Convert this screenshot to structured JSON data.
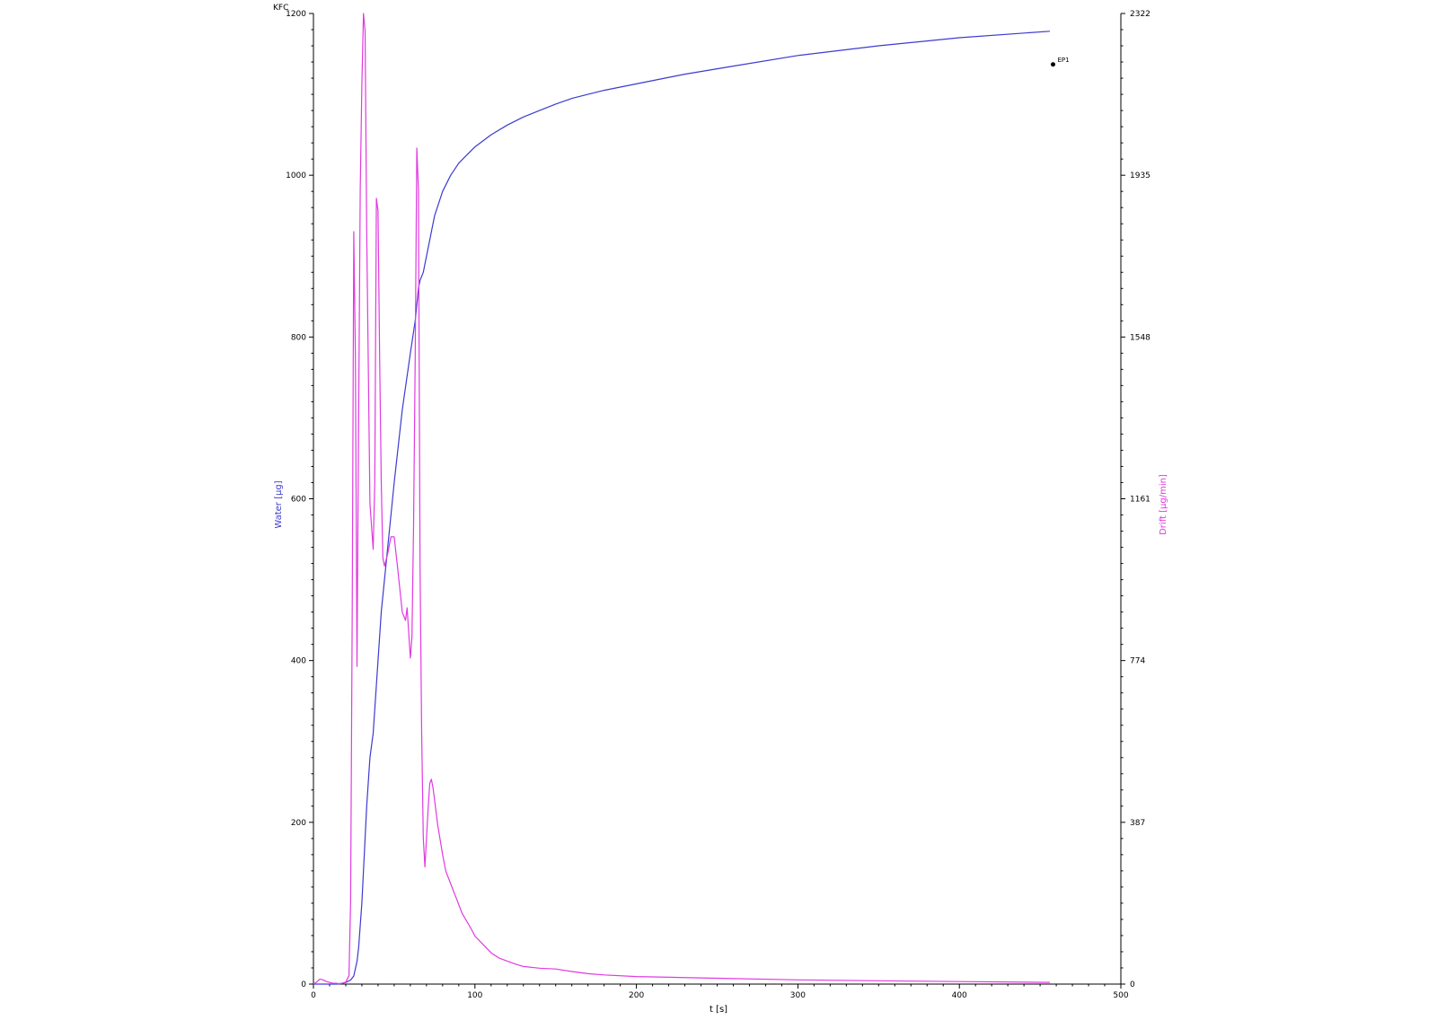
{
  "chart_data": {
    "type": "line",
    "title": "KFC",
    "xlabel": "t [s]",
    "y_left_label": "Water [µg]",
    "y_right_label": "Drift [µg/min]",
    "xlim": [
      0,
      500
    ],
    "y_left_lim": [
      0,
      1200
    ],
    "y_right_lim": [
      0,
      2322
    ],
    "x_ticks": [
      0,
      100,
      200,
      300,
      400,
      500
    ],
    "y_left_ticks": [
      0,
      200,
      400,
      600,
      800,
      1000,
      1200
    ],
    "y_right_ticks": [
      0,
      387,
      774,
      1161,
      1548,
      1935,
      2322
    ],
    "grid": false,
    "colors": {
      "water": "#3b3bd0",
      "drift": "#e03ae0",
      "axis": "#000000"
    },
    "annotations": [
      {
        "label": "EP1",
        "x": 458,
        "y": 1137
      }
    ],
    "series": [
      {
        "name": "Water [µg]",
        "axis": "left",
        "x": [
          0,
          5,
          10,
          15,
          20,
          23,
          25,
          27,
          28,
          30,
          32,
          33,
          35,
          37,
          40,
          42,
          43,
          45,
          50,
          55,
          60,
          63,
          65,
          66,
          68,
          70,
          72,
          75,
          80,
          85,
          90,
          95,
          100,
          110,
          120,
          130,
          140,
          150,
          160,
          180,
          200,
          230,
          260,
          300,
          350,
          400,
          456
        ],
        "y": [
          0,
          0,
          0,
          0,
          2,
          5,
          10,
          28,
          45,
          100,
          180,
          220,
          280,
          310,
          400,
          460,
          480,
          520,
          620,
          710,
          780,
          820,
          860,
          870,
          880,
          900,
          920,
          950,
          980,
          1000,
          1015,
          1025,
          1035,
          1050,
          1062,
          1072,
          1080,
          1088,
          1095,
          1105,
          1113,
          1125,
          1135,
          1148,
          1160,
          1170,
          1178
        ]
      },
      {
        "name": "Drift [µg/min]",
        "axis": "right",
        "x": [
          0,
          2,
          4,
          6,
          8,
          10,
          12,
          14,
          16,
          18,
          20,
          22,
          23,
          24,
          25,
          26,
          27,
          28,
          29,
          30,
          31,
          32,
          33,
          35,
          37,
          38,
          39,
          40,
          41,
          42,
          43,
          44,
          46,
          48,
          50,
          52,
          55,
          57,
          58,
          60,
          61,
          62,
          63,
          64,
          65,
          66,
          67,
          68,
          69,
          70,
          71,
          72,
          73,
          74,
          75,
          77,
          80,
          82,
          84,
          86,
          88,
          90,
          92,
          95,
          98,
          100,
          105,
          110,
          115,
          120,
          125,
          130,
          140,
          150,
          160,
          170,
          180,
          200,
          250,
          300,
          350,
          400,
          456
        ],
        "y": [
          0,
          5,
          12,
          10,
          6,
          4,
          2,
          2,
          1,
          2,
          5,
          20,
          200,
          900,
          1800,
          1500,
          760,
          1350,
          1900,
          2150,
          2322,
          2280,
          1800,
          1150,
          1040,
          1200,
          1880,
          1850,
          1500,
          1200,
          1020,
          1000,
          1030,
          1070,
          1070,
          1000,
          890,
          870,
          900,
          780,
          830,
          1100,
          1500,
          2000,
          1900,
          1000,
          600,
          350,
          280,
          350,
          420,
          480,
          490,
          470,
          440,
          380,
          310,
          270,
          250,
          230,
          210,
          190,
          170,
          150,
          130,
          115,
          95,
          75,
          62,
          55,
          48,
          42,
          38,
          36,
          30,
          25,
          22,
          18,
          14,
          10,
          8,
          6,
          4
        ]
      }
    ]
  }
}
